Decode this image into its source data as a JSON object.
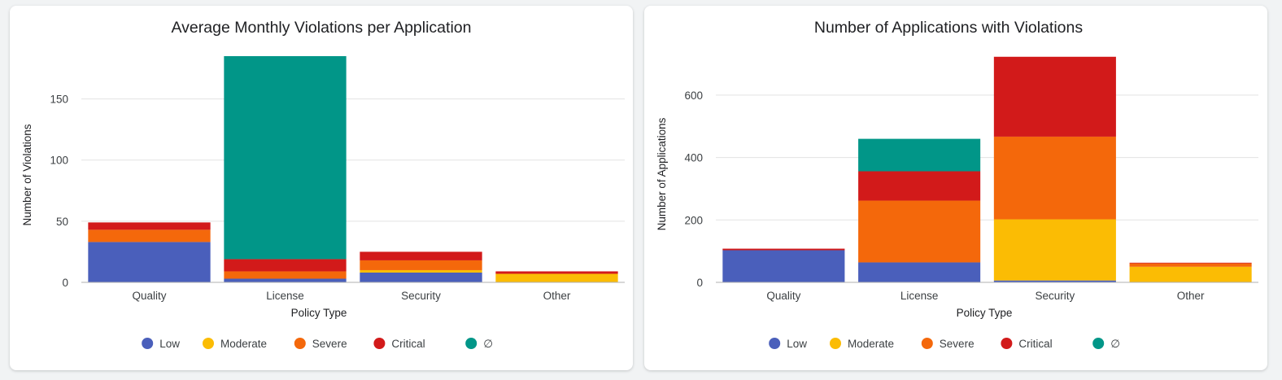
{
  "legend_colors": {
    "Low": "#4a5fbb",
    "Moderate": "#fbbc04",
    "Severe": "#f4680b",
    "Critical": "#d21a1a",
    "∅": "#019688"
  },
  "chart_data": [
    {
      "type": "bar",
      "stacked": true,
      "title": "Average Monthly Violations per Application",
      "xlabel": "Policy Type",
      "ylabel": "Number of Violations",
      "categories": [
        "Quality",
        "License",
        "Security",
        "Other"
      ],
      "ylim": [
        0,
        185
      ],
      "yticks": [
        0,
        50,
        100,
        150
      ],
      "grid": true,
      "legend_position": "bottom",
      "series": [
        {
          "name": "Low",
          "values": [
            33,
            3,
            8,
            0
          ]
        },
        {
          "name": "Moderate",
          "values": [
            0,
            0,
            2,
            7
          ]
        },
        {
          "name": "Severe",
          "values": [
            10,
            6,
            8,
            0
          ]
        },
        {
          "name": "Critical",
          "values": [
            6,
            10,
            7,
            2
          ]
        },
        {
          "name": "∅",
          "values": [
            0,
            166,
            0,
            0
          ]
        }
      ]
    },
    {
      "type": "bar",
      "stacked": true,
      "title": "Number of Applications with Violations",
      "xlabel": "Policy Type",
      "ylabel": "Number of Applications",
      "categories": [
        "Quality",
        "License",
        "Security",
        "Other"
      ],
      "ylim": [
        0,
        725
      ],
      "yticks": [
        0,
        200,
        400,
        600
      ],
      "grid": true,
      "legend_position": "bottom",
      "series": [
        {
          "name": "Low",
          "values": [
            103,
            64,
            6,
            0
          ]
        },
        {
          "name": "Moderate",
          "values": [
            0,
            0,
            196,
            50
          ]
        },
        {
          "name": "Severe",
          "values": [
            0,
            198,
            265,
            11
          ]
        },
        {
          "name": "Critical",
          "values": [
            5,
            94,
            256,
            2
          ]
        },
        {
          "name": "∅",
          "values": [
            0,
            104,
            0,
            0
          ]
        }
      ]
    }
  ]
}
